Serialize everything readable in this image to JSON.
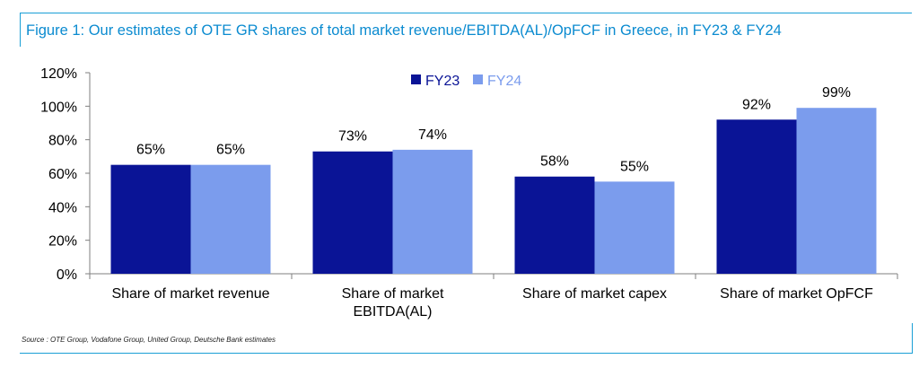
{
  "title": "Figure 1: Our estimates of OTE GR shares of total market revenue/EBITDA(AL)/OpFCF in Greece, in FY23 & FY24",
  "source": "Source : OTE Group, Vodafone Group, United Group, Deutsche Bank estimates",
  "colors": {
    "FY23": "#0a1496",
    "FY24": "#7b9ced",
    "title": "#0b8bd0",
    "frame": "#1a9fd6"
  },
  "chart_data": {
    "type": "bar",
    "categories": [
      [
        "Share of market revenue"
      ],
      [
        "Share of market",
        "EBITDA(AL)"
      ],
      [
        "Share of market capex"
      ],
      [
        "Share of market OpFCF"
      ]
    ],
    "series": [
      {
        "name": "FY23",
        "values": [
          65,
          73,
          58,
          92
        ],
        "labels": [
          "65%",
          "73%",
          "58%",
          "92%"
        ]
      },
      {
        "name": "FY24",
        "values": [
          65,
          74,
          55,
          99
        ],
        "labels": [
          "65%",
          "74%",
          "55%",
          "99%"
        ]
      }
    ],
    "ylim": [
      0,
      120
    ],
    "yticks": [
      "0%",
      "20%",
      "40%",
      "60%",
      "80%",
      "100%",
      "120%"
    ],
    "grid": false,
    "legend": "top-center",
    "xlabel": "",
    "ylabel": ""
  }
}
